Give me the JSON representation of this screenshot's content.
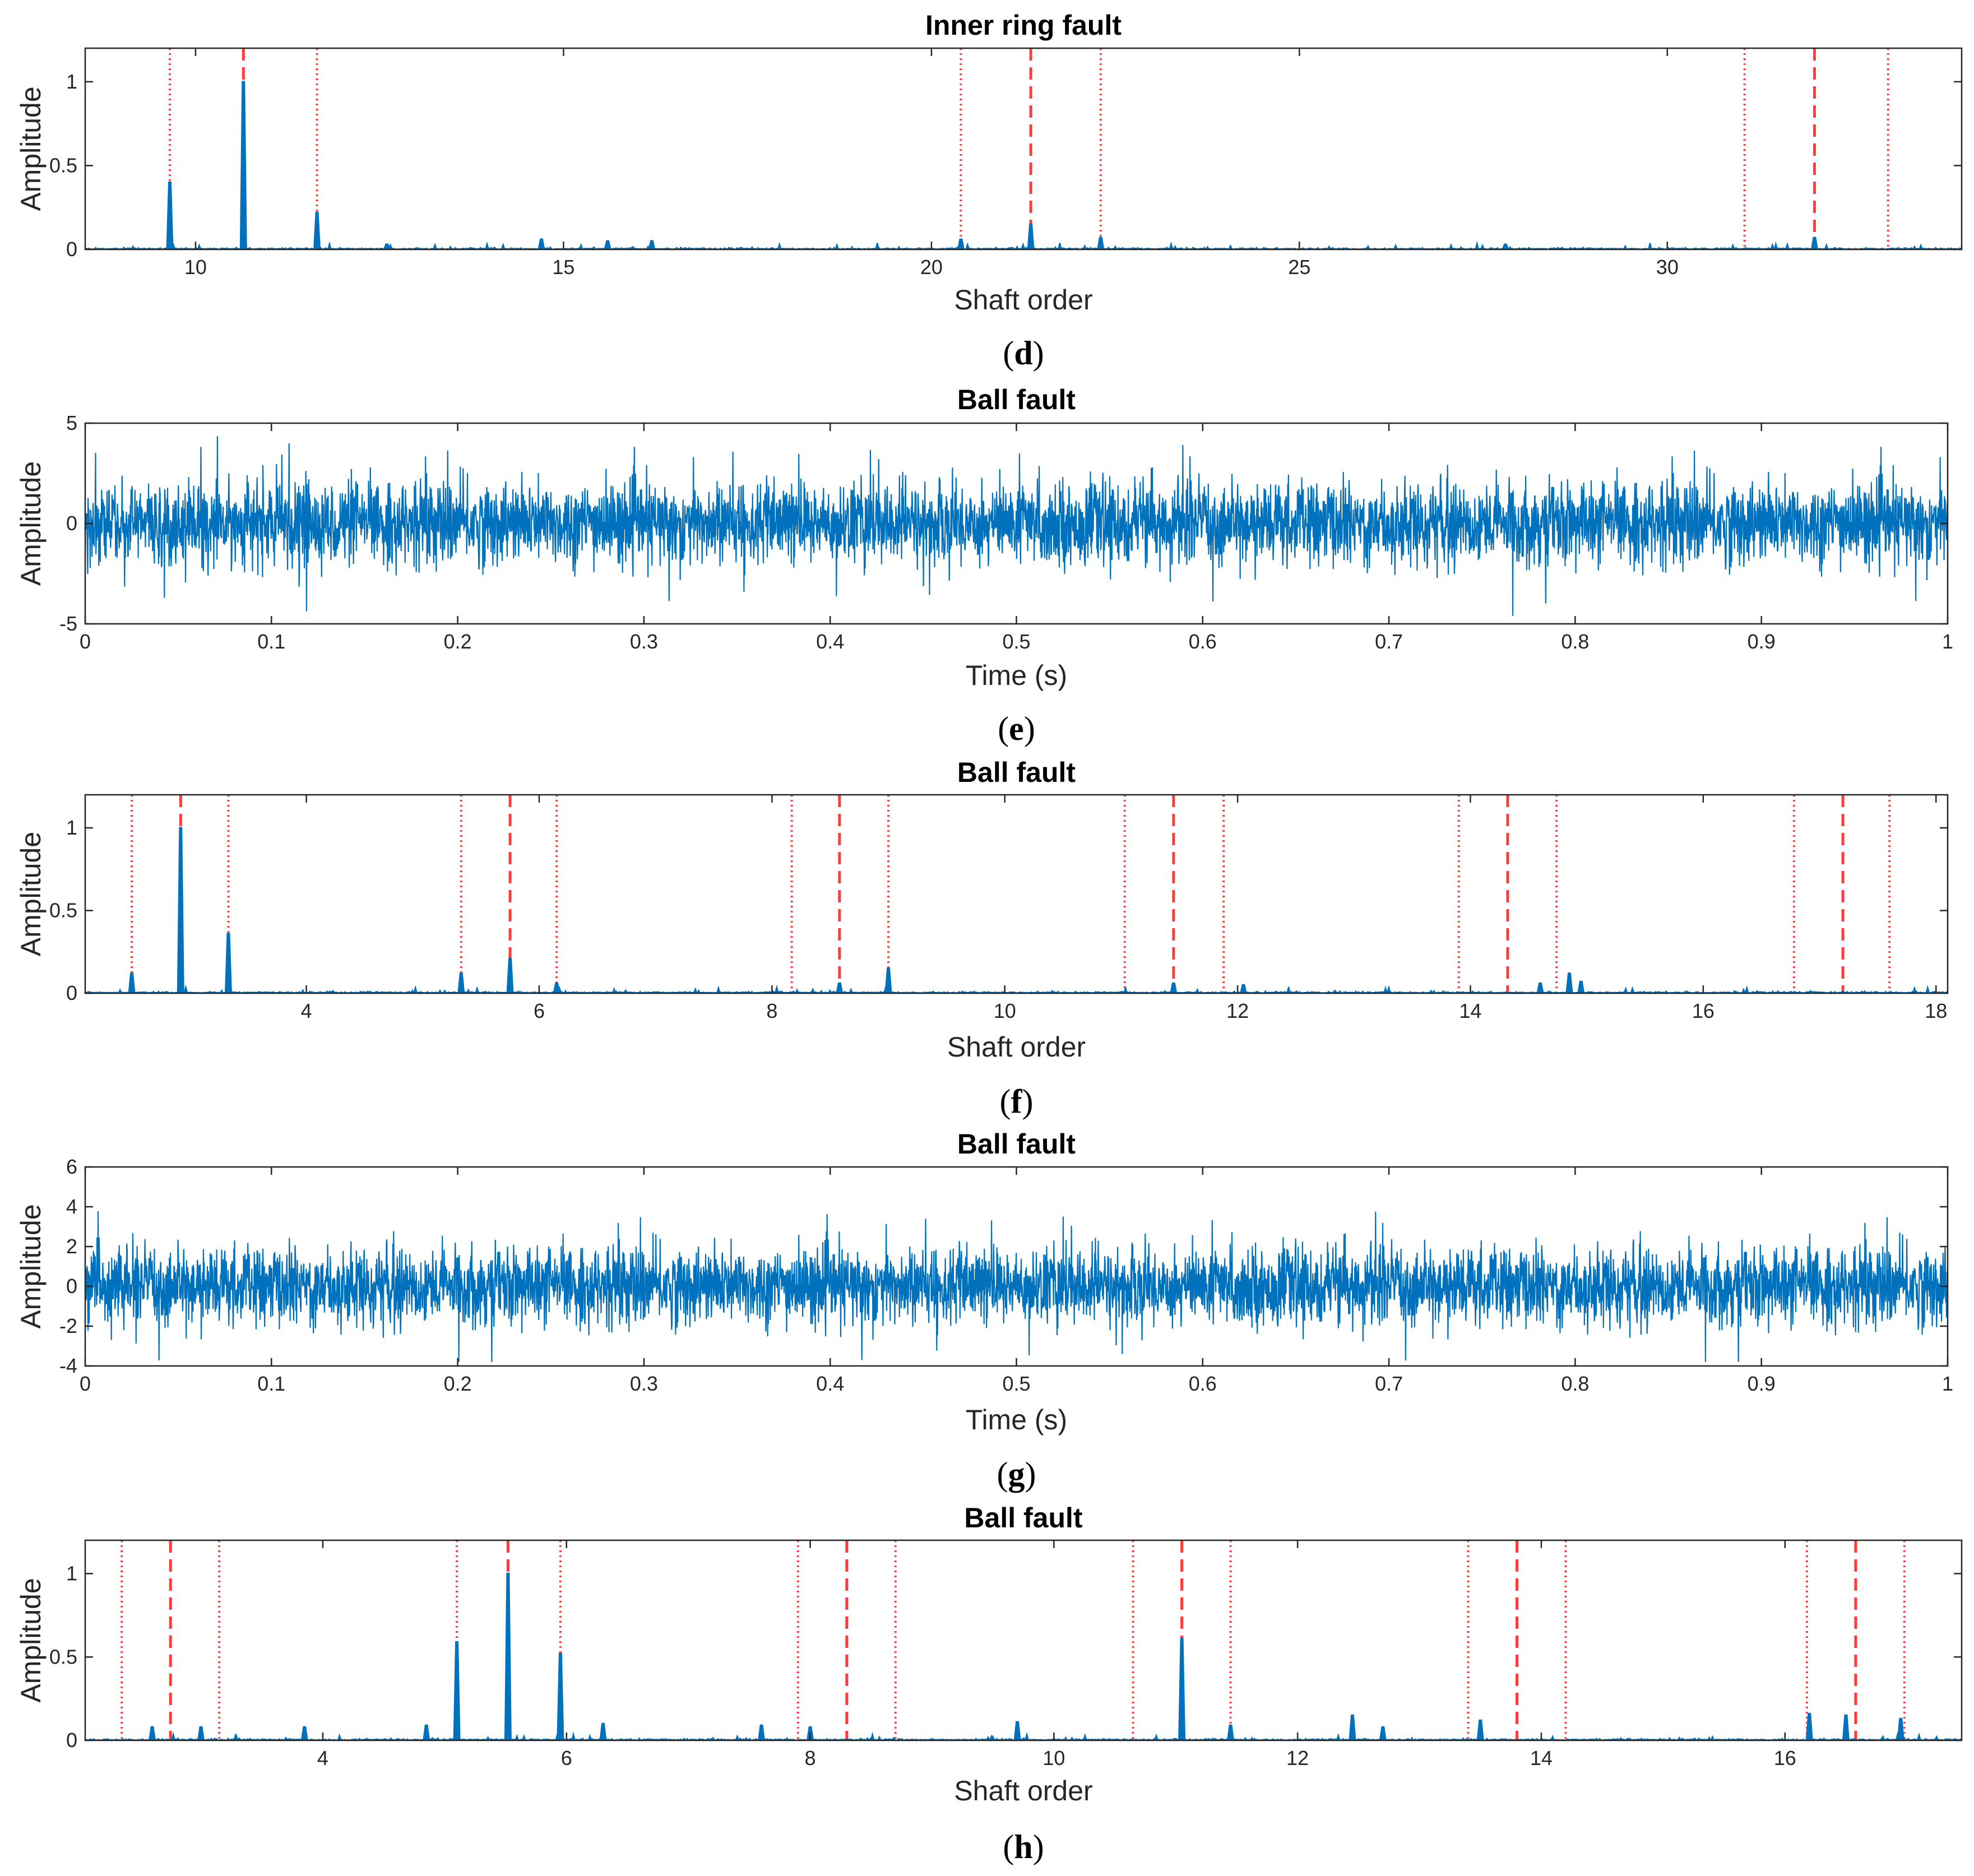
{
  "colors": {
    "signal": "#0072BD",
    "marker": "#FF3B3B",
    "axis": "#262626"
  },
  "chart_data": [
    {
      "id": "d",
      "type": "line",
      "kind": "spectrum",
      "title": "Inner ring fault",
      "xlabel": "Shaft order",
      "ylabel": "Amplitude",
      "caption_letter": "d",
      "xlim": [
        8.5,
        34
      ],
      "ylim": [
        0,
        1.2
      ],
      "xticks": [
        10,
        15,
        20,
        25,
        30
      ],
      "xtick_labels": [
        "10",
        "15",
        "20",
        "25",
        "30"
      ],
      "yticks": [
        0,
        0.5,
        1
      ],
      "ytick_labels": [
        "0",
        "0.5",
        "1"
      ],
      "peaks": [
        {
          "x": 9.65,
          "y": 0.4
        },
        {
          "x": 10.65,
          "y": 1.0
        },
        {
          "x": 11.65,
          "y": 0.22
        },
        {
          "x": 12.6,
          "y": 0.03
        },
        {
          "x": 14.7,
          "y": 0.06
        },
        {
          "x": 15.6,
          "y": 0.05
        },
        {
          "x": 16.2,
          "y": 0.05
        },
        {
          "x": 20.4,
          "y": 0.06
        },
        {
          "x": 21.35,
          "y": 0.15
        },
        {
          "x": 22.3,
          "y": 0.07
        },
        {
          "x": 27.8,
          "y": 0.03
        },
        {
          "x": 32.0,
          "y": 0.07
        }
      ],
      "dashed_lines": [
        10.65,
        21.35,
        32.0
      ],
      "dotted_lines": [
        9.65,
        11.65,
        20.4,
        22.3,
        31.05,
        33.0
      ]
    },
    {
      "id": "e",
      "type": "line",
      "kind": "noise",
      "title": "Ball fault",
      "xlabel": "Time (s)",
      "ylabel": "Amplitude",
      "caption_letter": "e",
      "xlim": [
        0,
        1
      ],
      "ylim": [
        -5,
        5
      ],
      "xticks": [
        0,
        0.1,
        0.2,
        0.3,
        0.4,
        0.5,
        0.6,
        0.7,
        0.8,
        0.9,
        1
      ],
      "xtick_labels": [
        "0",
        "0.1",
        "0.2",
        "0.3",
        "0.4",
        "0.5",
        "0.6",
        "0.7",
        "0.8",
        "0.9",
        "1"
      ],
      "yticks": [
        -5,
        0,
        5
      ],
      "ytick_labels": [
        "-5",
        "0",
        "5"
      ],
      "signal": {
        "mean": 0,
        "std": 1.0,
        "peak_max": 4.8,
        "peak_min": -4.6
      }
    },
    {
      "id": "f",
      "type": "line",
      "kind": "spectrum",
      "title": "Ball fault",
      "xlabel": "Shaft order",
      "ylabel": "Amplitude",
      "caption_letter": "f",
      "xlim": [
        2.1,
        18.1
      ],
      "ylim": [
        0,
        1.2
      ],
      "xticks": [
        4,
        6,
        8,
        10,
        12,
        14,
        16,
        18
      ],
      "xtick_labels": [
        "4",
        "6",
        "8",
        "10",
        "12",
        "14",
        "16",
        "18"
      ],
      "yticks": [
        0,
        0.5,
        1
      ],
      "ytick_labels": [
        "0",
        "0.5",
        "1"
      ],
      "peaks": [
        {
          "x": 2.5,
          "y": 0.12
        },
        {
          "x": 2.92,
          "y": 1.0
        },
        {
          "x": 3.33,
          "y": 0.36
        },
        {
          "x": 5.33,
          "y": 0.12
        },
        {
          "x": 5.75,
          "y": 0.21
        },
        {
          "x": 6.15,
          "y": 0.06
        },
        {
          "x": 8.58,
          "y": 0.06
        },
        {
          "x": 9.0,
          "y": 0.15
        },
        {
          "x": 11.45,
          "y": 0.06
        },
        {
          "x": 12.05,
          "y": 0.05
        },
        {
          "x": 14.6,
          "y": 0.06
        },
        {
          "x": 14.85,
          "y": 0.12
        },
        {
          "x": 14.95,
          "y": 0.07
        }
      ],
      "dashed_lines": [
        2.92,
        5.75,
        8.58,
        11.45,
        14.32,
        17.2
      ],
      "dotted_lines": [
        2.5,
        3.33,
        5.33,
        6.15,
        8.17,
        9.0,
        11.03,
        11.88,
        13.9,
        14.74,
        16.78,
        17.6
      ]
    },
    {
      "id": "g",
      "type": "line",
      "kind": "noise",
      "title": "Ball fault",
      "xlabel": "Time (s)",
      "ylabel": "Amplitude",
      "caption_letter": "g",
      "xlim": [
        0,
        1
      ],
      "ylim": [
        -4,
        6
      ],
      "xticks": [
        0,
        0.1,
        0.2,
        0.3,
        0.4,
        0.5,
        0.6,
        0.7,
        0.8,
        0.9,
        1
      ],
      "xtick_labels": [
        "0",
        "0.1",
        "0.2",
        "0.3",
        "0.4",
        "0.5",
        "0.6",
        "0.7",
        "0.8",
        "0.9",
        "1"
      ],
      "yticks": [
        -4,
        -2,
        0,
        2,
        4,
        6
      ],
      "ytick_labels": [
        "-4",
        "-2",
        "0",
        "2",
        "4",
        "6"
      ],
      "signal": {
        "mean": 0,
        "std": 0.95,
        "peak_max": 4.5,
        "peak_min": -3.8
      }
    },
    {
      "id": "h",
      "type": "line",
      "kind": "spectrum",
      "title": "Ball fault",
      "xlabel": "Shaft order",
      "ylabel": "Amplitude",
      "caption_letter": "h",
      "xlim": [
        2.05,
        17.45
      ],
      "ylim": [
        0,
        1.2
      ],
      "xticks": [
        4,
        6,
        8,
        10,
        12,
        14,
        16
      ],
      "xtick_labels": [
        "4",
        "6",
        "8",
        "10",
        "12",
        "14",
        "16"
      ],
      "yticks": [
        0,
        0.5,
        1
      ],
      "ytick_labels": [
        "0",
        "0.5",
        "1"
      ],
      "peaks": [
        {
          "x": 2.6,
          "y": 0.08
        },
        {
          "x": 3.0,
          "y": 0.08
        },
        {
          "x": 3.85,
          "y": 0.08
        },
        {
          "x": 4.85,
          "y": 0.09
        },
        {
          "x": 5.1,
          "y": 0.59
        },
        {
          "x": 5.52,
          "y": 1.0
        },
        {
          "x": 5.95,
          "y": 0.52
        },
        {
          "x": 6.3,
          "y": 0.1
        },
        {
          "x": 7.6,
          "y": 0.09
        },
        {
          "x": 8.0,
          "y": 0.08
        },
        {
          "x": 9.7,
          "y": 0.11
        },
        {
          "x": 11.05,
          "y": 0.61
        },
        {
          "x": 11.45,
          "y": 0.09
        },
        {
          "x": 12.45,
          "y": 0.15
        },
        {
          "x": 12.7,
          "y": 0.08
        },
        {
          "x": 13.5,
          "y": 0.12
        },
        {
          "x": 16.2,
          "y": 0.16
        },
        {
          "x": 16.5,
          "y": 0.15
        },
        {
          "x": 16.95,
          "y": 0.13
        }
      ],
      "dashed_lines": [
        2.75,
        5.52,
        8.3,
        11.05,
        13.8,
        16.58
      ],
      "dotted_lines": [
        2.35,
        3.15,
        5.1,
        5.95,
        7.9,
        8.7,
        10.65,
        11.45,
        13.4,
        14.2,
        16.18,
        16.98
      ]
    }
  ]
}
